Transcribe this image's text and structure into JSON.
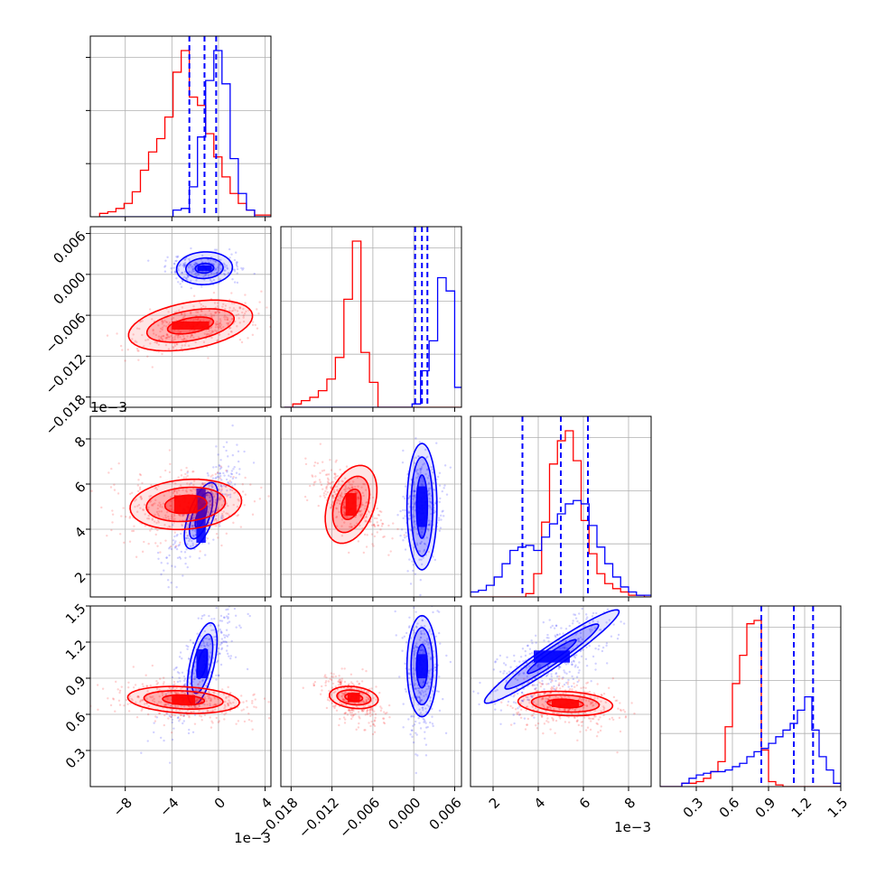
{
  "chart_data": {
    "type": "corner",
    "colors": {
      "series_a": "#0000ff",
      "series_b": "#ff0000",
      "grid": "#b0b0b0",
      "frame": "#000000"
    },
    "parameters": [
      {
        "range": [
          -11.0,
          4.5
        ],
        "ticks": [
          -8,
          -4,
          0,
          4
        ],
        "tick_labels": [
          "−8",
          "−4",
          "0",
          "4"
        ],
        "offset": "1e−3"
      },
      {
        "range": [
          -0.0195,
          0.007
        ],
        "ticks": [
          -0.018,
          -0.012,
          -0.006,
          0.0,
          0.006
        ],
        "tick_labels": [
          "−0.018",
          "−0.012",
          "−0.006",
          "0.000",
          "0.006"
        ],
        "offset": ""
      },
      {
        "range": [
          1.0,
          9.0
        ],
        "ticks": [
          2,
          4,
          6,
          8
        ],
        "tick_labels": [
          "2",
          "4",
          "6",
          "8"
        ],
        "offset": "1e−3"
      },
      {
        "range": [
          0.0,
          1.5
        ],
        "ticks": [
          0.3,
          0.6,
          0.9,
          1.2,
          1.5
        ],
        "tick_labels": [
          "0.3",
          "0.6",
          "0.9",
          "1.2",
          "1.5"
        ],
        "offset": ""
      }
    ],
    "quantiles_series_a": [
      [
        -2.5,
        -1.2,
        -0.2
      ],
      [
        0.0002,
        0.0012,
        0.002
      ],
      [
        3.3,
        5.0,
        6.2
      ],
      [
        0.84,
        1.11,
        1.27
      ]
    ],
    "histograms": [
      {
        "edges_start": -10.2,
        "bin_width": 0.7,
        "series_a": [
          0,
          0,
          0,
          0,
          0,
          0,
          0,
          0,
          0,
          0.04,
          0.05,
          0.18,
          0.48,
          0.82,
          1.0,
          0.8,
          0.35,
          0.14,
          0.04,
          0,
          0,
          0
        ],
        "series_b": [
          0.02,
          0.03,
          0.05,
          0.08,
          0.15,
          0.28,
          0.39,
          0.47,
          0.6,
          0.87,
          1.0,
          0.72,
          0.67,
          0.5,
          0.36,
          0.24,
          0.14,
          0.08,
          0.04,
          0.01,
          0.01,
          0
        ]
      },
      {
        "edges_start": -0.019,
        "bin_width": 0.00125,
        "series_a": [
          0,
          0,
          0,
          0,
          0,
          0,
          0,
          0,
          0,
          0,
          0,
          0,
          0,
          0,
          0,
          0.02,
          0.22,
          0.4,
          0.78,
          0.7,
          0.12,
          0,
          0
        ],
        "series_b": [
          0,
          0.02,
          0.04,
          0.06,
          0.1,
          0.17,
          0.3,
          0.65,
          1.0,
          0.33,
          0.15,
          0,
          0,
          0,
          0,
          0,
          0,
          0,
          0,
          0,
          0,
          0,
          0
        ]
      },
      {
        "edges_start": 1.0,
        "bin_width": 0.35,
        "series_a": [
          0.03,
          0.04,
          0.07,
          0.12,
          0.2,
          0.28,
          0.3,
          0.31,
          0.28,
          0.36,
          0.44,
          0.5,
          0.56,
          0.58,
          0.56,
          0.43,
          0.3,
          0.2,
          0.12,
          0.06,
          0.03,
          0.01,
          0.01
        ],
        "series_b": [
          0,
          0,
          0,
          0,
          0,
          0,
          0,
          0.02,
          0.14,
          0.45,
          0.8,
          0.94,
          1.0,
          0.82,
          0.46,
          0.26,
          0.14,
          0.08,
          0.05,
          0.03,
          0.01,
          0.01,
          0
        ]
      },
      {
        "edges_start": 0.0,
        "bin_width": 0.06,
        "series_a": [
          0,
          0,
          0,
          0.02,
          0.05,
          0.07,
          0.08,
          0.09,
          0.09,
          0.1,
          0.12,
          0.14,
          0.18,
          0.21,
          0.23,
          0.26,
          0.3,
          0.34,
          0.38,
          0.46,
          0.54,
          0.34,
          0.18,
          0.1,
          0.02
        ],
        "series_b": [
          0,
          0,
          0,
          0.02,
          0.02,
          0.03,
          0.05,
          0.09,
          0.15,
          0.36,
          0.62,
          0.79,
          0.98,
          1.0,
          0.22,
          0.03,
          0.01,
          0,
          0,
          0,
          0,
          0,
          0,
          0,
          0
        ]
      }
    ],
    "scatter_clouds": [
      {
        "row": 1,
        "col": 0,
        "series": "a",
        "center": [
          -1.5,
          0.0009
        ],
        "spread": [
          1.6,
          0.0011
        ],
        "rho": 0.2,
        "count": 260
      },
      {
        "row": 1,
        "col": 0,
        "series": "b",
        "center": [
          -2.0,
          -0.0076
        ],
        "spread": [
          2.6,
          0.0018
        ],
        "rho": 0.55,
        "count": 420
      },
      {
        "row": 2,
        "col": 0,
        "series": "a",
        "center": [
          -1.2,
          4.8
        ],
        "spread": [
          1.5,
          1.3
        ],
        "rho": 0.82,
        "count": 320
      },
      {
        "row": 2,
        "col": 0,
        "series": "b",
        "center": [
          -3.0,
          5.0
        ],
        "spread": [
          3.0,
          0.8
        ],
        "rho": 0.15,
        "count": 420
      },
      {
        "row": 2,
        "col": 1,
        "series": "a",
        "center": [
          0.0012,
          5.0
        ],
        "spread": [
          0.0014,
          1.2
        ],
        "rho": 0.1,
        "count": 320
      },
      {
        "row": 2,
        "col": 1,
        "series": "b",
        "center": [
          -0.0095,
          5.2
        ],
        "spread": [
          0.0028,
          0.8
        ],
        "rho": -0.7,
        "count": 360
      },
      {
        "row": 3,
        "col": 0,
        "series": "a",
        "center": [
          -1.5,
          0.98
        ],
        "spread": [
          1.6,
          0.28
        ],
        "rho": 0.75,
        "count": 320
      },
      {
        "row": 3,
        "col": 0,
        "series": "b",
        "center": [
          -3.2,
          0.71
        ],
        "spread": [
          3.2,
          0.09
        ],
        "rho": -0.3,
        "count": 420
      },
      {
        "row": 3,
        "col": 1,
        "series": "a",
        "center": [
          0.0012,
          0.98
        ],
        "spread": [
          0.0013,
          0.28
        ],
        "rho": 0.05,
        "count": 320
      },
      {
        "row": 3,
        "col": 1,
        "series": "b",
        "center": [
          -0.009,
          0.72
        ],
        "spread": [
          0.0022,
          0.1
        ],
        "rho": -0.45,
        "count": 360
      },
      {
        "row": 3,
        "col": 2,
        "series": "a",
        "center": [
          4.6,
          1.05
        ],
        "spread": [
          1.6,
          0.22
        ],
        "rho": 0.72,
        "count": 380
      },
      {
        "row": 3,
        "col": 2,
        "series": "b",
        "center": [
          5.2,
          0.68
        ],
        "spread": [
          1.2,
          0.1
        ],
        "rho": -0.2,
        "count": 380
      }
    ],
    "contours": [
      {
        "row": 1,
        "col": 0,
        "series": "a",
        "center": [
          -1.2,
          0.0009
        ],
        "rx": [
          2.4,
          1.6,
          0.8
        ],
        "ry": [
          0.0024,
          0.0015,
          0.0007
        ],
        "rot": 0.05,
        "core": [
          0.6,
          0.0004
        ]
      },
      {
        "row": 1,
        "col": 0,
        "series": "b",
        "center": [
          -2.4,
          -0.0075
        ],
        "rx": [
          5.4,
          3.8,
          2.0
        ],
        "ry": [
          0.0034,
          0.0022,
          0.0011
        ],
        "rot": 0.18,
        "core": [
          1.6,
          0.0006
        ]
      },
      {
        "row": 2,
        "col": 0,
        "series": "a",
        "center": [
          -1.5,
          4.6
        ],
        "rx": [
          3.0,
          2.1,
          1.1
        ],
        "ry": [
          0.55,
          0.38,
          0.18
        ],
        "rot": 1.22,
        "core": [
          0.4,
          1.2
        ]
      },
      {
        "row": 2,
        "col": 0,
        "series": "b",
        "center": [
          -2.8,
          5.1
        ],
        "rx": [
          4.8,
          3.4,
          1.8
        ],
        "ry": [
          1.1,
          0.75,
          0.4
        ],
        "rot": 0.08,
        "core": [
          1.0,
          0.4
        ]
      },
      {
        "row": 2,
        "col": 1,
        "series": "a",
        "center": [
          0.0012,
          5.0
        ],
        "rx": [
          0.0022,
          0.0016,
          0.0008
        ],
        "ry": [
          2.8,
          2.2,
          1.4
        ],
        "rot": 0.0,
        "core": [
          0.0007,
          0.9
        ]
      },
      {
        "row": 2,
        "col": 1,
        "series": "b",
        "center": [
          -0.0092,
          5.1
        ],
        "rx": [
          0.0034,
          0.0024,
          0.0013
        ],
        "ry": [
          1.8,
          1.3,
          0.7
        ],
        "rot": -0.35,
        "core": [
          0.0008,
          0.5
        ]
      },
      {
        "row": 3,
        "col": 0,
        "series": "a",
        "center": [
          -1.4,
          1.02
        ],
        "rx": [
          3.6,
          2.6,
          1.3
        ],
        "ry": [
          0.1,
          0.07,
          0.035
        ],
        "rot": 1.35,
        "core": [
          0.5,
          0.12
        ]
      },
      {
        "row": 3,
        "col": 0,
        "series": "b",
        "center": [
          -3.0,
          0.72
        ],
        "rx": [
          4.8,
          3.4,
          1.8
        ],
        "ry": [
          0.11,
          0.075,
          0.04
        ],
        "rot": -0.05,
        "core": [
          1.0,
          0.04
        ]
      },
      {
        "row": 3,
        "col": 1,
        "series": "a",
        "center": [
          0.0012,
          1.0
        ],
        "rx": [
          0.0022,
          0.0016,
          0.0008
        ],
        "ry": [
          0.42,
          0.32,
          0.18
        ],
        "rot": 0.0,
        "core": [
          0.0007,
          0.1
        ]
      },
      {
        "row": 3,
        "col": 1,
        "series": "b",
        "center": [
          -0.0088,
          0.74
        ],
        "rx": [
          0.0036,
          0.0025,
          0.0013
        ],
        "ry": [
          0.09,
          0.06,
          0.03
        ],
        "rot": -0.12,
        "core": [
          0.0009,
          0.04
        ]
      },
      {
        "row": 3,
        "col": 2,
        "series": "a",
        "center": [
          4.6,
          1.08
        ],
        "rx": [
          3.6,
          2.5,
          1.3
        ],
        "ry": [
          0.09,
          0.065,
          0.035
        ],
        "rot": 0.6,
        "core": [
          0.8,
          0.05
        ]
      },
      {
        "row": 3,
        "col": 2,
        "series": "b",
        "center": [
          5.2,
          0.69
        ],
        "rx": [
          2.1,
          1.5,
          0.8
        ],
        "ry": [
          0.1,
          0.07,
          0.035
        ],
        "rot": -0.05,
        "core": [
          0.6,
          0.03
        ]
      }
    ]
  }
}
